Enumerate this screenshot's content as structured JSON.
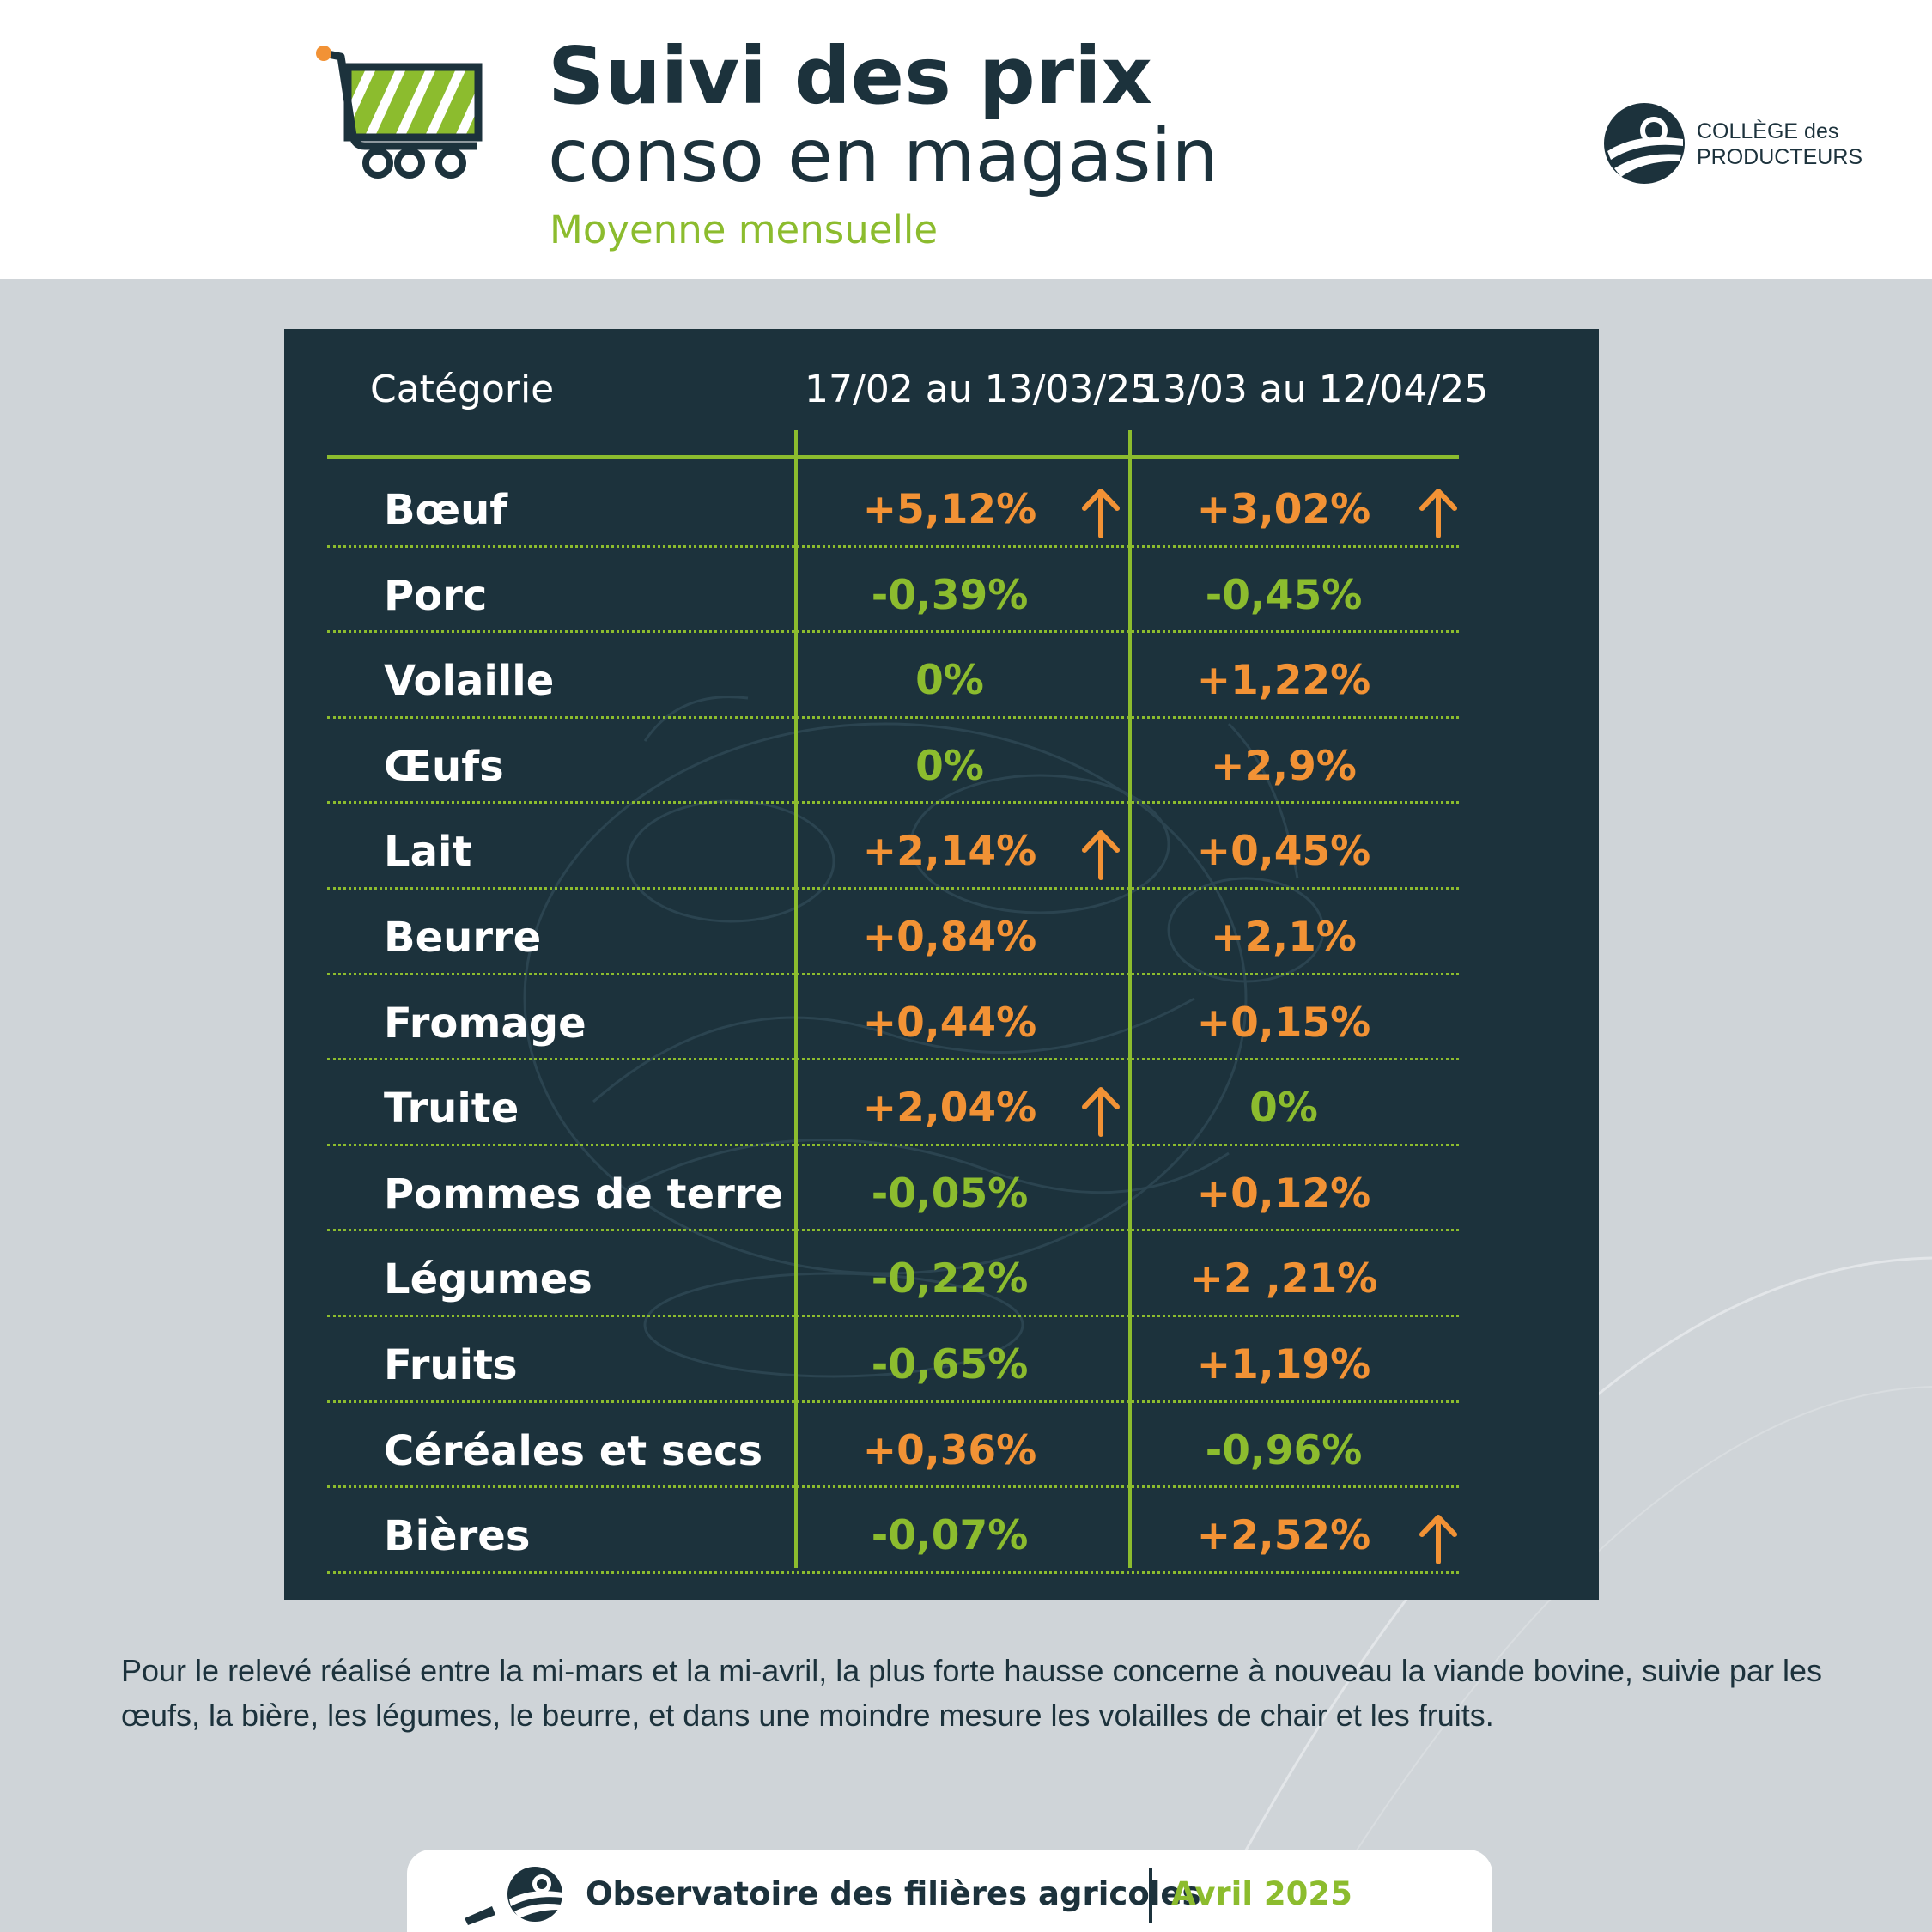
{
  "header": {
    "title_line1": "Suivi des prix",
    "title_line2": "conso en magasin",
    "subtitle": "Moyenne mensuelle",
    "logo_line1": "COLLÈGE des",
    "logo_line2": "PRODUCTEURS"
  },
  "table": {
    "columns": [
      "Catégorie",
      "17/02 au 13/03/25",
      "13/03 au 12/04/25"
    ],
    "rows": [
      {
        "category": "Bœuf",
        "p1": "+5,12%",
        "p2": "+3,02%",
        "p1_trend": "up",
        "p2_trend": "up",
        "p1_arrow": true,
        "p2_arrow": true
      },
      {
        "category": "Porc",
        "p1": "-0,39%",
        "p2": "-0,45%",
        "p1_trend": "down",
        "p2_trend": "down",
        "p1_arrow": false,
        "p2_arrow": false
      },
      {
        "category": "Volaille",
        "p1": "0%",
        "p2": "+1,22%",
        "p1_trend": "down",
        "p2_trend": "up",
        "p1_arrow": false,
        "p2_arrow": false
      },
      {
        "category": "Œufs",
        "p1": "0%",
        "p2": "+2,9%",
        "p1_trend": "down",
        "p2_trend": "up",
        "p1_arrow": false,
        "p2_arrow": false
      },
      {
        "category": "Lait",
        "p1": "+2,14%",
        "p2": "+0,45%",
        "p1_trend": "up",
        "p2_trend": "up",
        "p1_arrow": true,
        "p2_arrow": false
      },
      {
        "category": "Beurre",
        "p1": "+0,84%",
        "p2": "+2,1%",
        "p1_trend": "up",
        "p2_trend": "up",
        "p1_arrow": false,
        "p2_arrow": false
      },
      {
        "category": "Fromage",
        "p1": "+0,44%",
        "p2": "+0,15%",
        "p1_trend": "up",
        "p2_trend": "up",
        "p1_arrow": false,
        "p2_arrow": false
      },
      {
        "category": "Truite",
        "p1": "+2,04%",
        "p2": "0%",
        "p1_trend": "up",
        "p2_trend": "down",
        "p1_arrow": true,
        "p2_arrow": false
      },
      {
        "category": "Pommes de terre",
        "p1": "-0,05%",
        "p2": "+0,12%",
        "p1_trend": "down",
        "p2_trend": "up",
        "p1_arrow": false,
        "p2_arrow": false
      },
      {
        "category": "Légumes",
        "p1": "-0,22%",
        "p2": "+2 ,21%",
        "p1_trend": "down",
        "p2_trend": "up",
        "p1_arrow": false,
        "p2_arrow": false
      },
      {
        "category": "Fruits",
        "p1": "-0,65%",
        "p2": "+1,19%",
        "p1_trend": "down",
        "p2_trend": "up",
        "p1_arrow": false,
        "p2_arrow": false
      },
      {
        "category": "Céréales et secs",
        "p1": "+0,36%",
        "p2": "-0,96%",
        "p1_trend": "up",
        "p2_trend": "down",
        "p1_arrow": false,
        "p2_arrow": false
      },
      {
        "category": "Bières",
        "p1": "-0,07%",
        "p2": "+2,52%",
        "p1_trend": "down",
        "p2_trend": "up",
        "p1_arrow": false,
        "p2_arrow": true
      }
    ]
  },
  "note": "Pour le relevé réalisé entre la mi-mars et la mi-avril, la plus forte hausse concerne à nouveau la viande bovine, suivie par les œufs, la bière, les légumes, le beurre, et dans une moindre mesure les volailles de chair et les fruits.",
  "footer": {
    "organization": "Observatoire des filières agricoles",
    "date": "Avril 2025"
  },
  "colors": {
    "dark": "#1c323c",
    "green": "#8cbc2e",
    "orange": "#f29235",
    "grey_bg": "#cfd4d8"
  },
  "icons": [
    "shopping-cart-icon",
    "college-logo-icon",
    "arrow-up-icon",
    "observatoire-logo-icon"
  ]
}
